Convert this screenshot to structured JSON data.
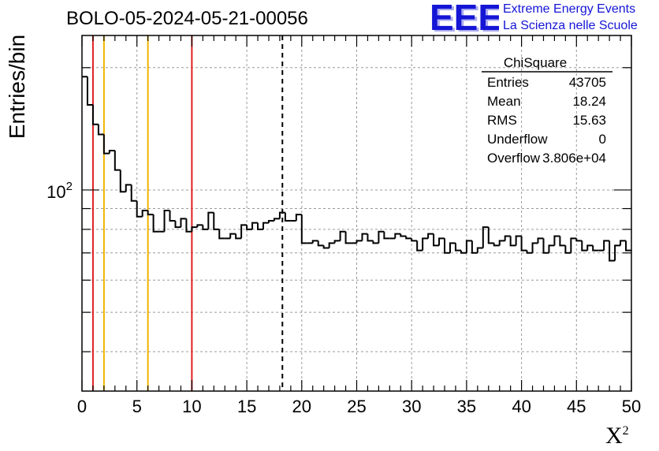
{
  "title": "BOLO-05-2024-05-21-00056",
  "logo": {
    "mark_text": "EEE",
    "line1": "Extreme Energy Events",
    "line2": "La Scienza nelle Scuole",
    "color": "#1515d6"
  },
  "stats_box": {
    "name": "ChiSquare",
    "rows": [
      {
        "label": "Entries",
        "value": "43705"
      },
      {
        "label": "Mean",
        "value": "18.24"
      },
      {
        "label": "RMS",
        "value": "15.63"
      },
      {
        "label": "Underflow",
        "value": "0"
      },
      {
        "label": "Overflow",
        "value": "3.806e+04"
      }
    ]
  },
  "chart_data": {
    "type": "histogram",
    "xlabel": "X",
    "xlabel_superscript": "2",
    "ylabel": "Entries/bin",
    "xlim": [
      0,
      50
    ],
    "ylim": [
      32,
      240
    ],
    "log_y": true,
    "grid": true,
    "bin_width": 0.5,
    "x_ticks": [
      0,
      5,
      10,
      15,
      20,
      25,
      30,
      35,
      40,
      45,
      50
    ],
    "x_tick_labels": [
      "0",
      "5",
      "10",
      "15",
      "20",
      "25",
      "30",
      "35",
      "40",
      "45",
      "50"
    ],
    "y_tick_label_base": "10",
    "y_tick_label_exp": "2",
    "y_tick_value": 100,
    "values": [
      190,
      162,
      145,
      137,
      123,
      125,
      112,
      99,
      103,
      94,
      86,
      89,
      87,
      79,
      79,
      89,
      84,
      81,
      85,
      79,
      81,
      82,
      80,
      88,
      80,
      76,
      76,
      78,
      76,
      82,
      80,
      83,
      80,
      83,
      84,
      85,
      88,
      84,
      84,
      87,
      74,
      74,
      75,
      73,
      72,
      74,
      75,
      79,
      74,
      74,
      75,
      78,
      75,
      74,
      79,
      76,
      76,
      78,
      77,
      76,
      75,
      71,
      76,
      78,
      73,
      76,
      70,
      74,
      71,
      70,
      75,
      70,
      72,
      81,
      74,
      73,
      75,
      77,
      73,
      77,
      71,
      70,
      74,
      76,
      70,
      73,
      77,
      73,
      70,
      76,
      75,
      71,
      73,
      71,
      71,
      75,
      67,
      73,
      75,
      71
    ],
    "vertical_lines": [
      {
        "x": 1,
        "color": "#e02020",
        "style": "solid"
      },
      {
        "x": 2,
        "color": "#f0b400",
        "style": "solid"
      },
      {
        "x": 6,
        "color": "#f0b400",
        "style": "solid"
      },
      {
        "x": 10,
        "color": "#e02020",
        "style": "solid"
      },
      {
        "x": 18.24,
        "color": "#000000",
        "style": "dashed"
      }
    ]
  }
}
